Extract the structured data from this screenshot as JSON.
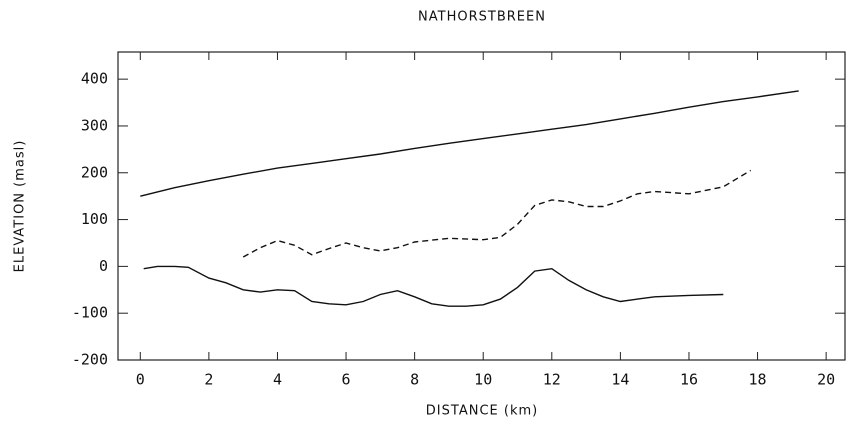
{
  "chart_data": {
    "type": "line",
    "title": "NATHORSTBREEN",
    "x_label": "DISTANCE (km)",
    "y_label": "ELEVATION (masl)",
    "xlim": [
      -0.65,
      20.55
    ],
    "ylim": [
      -200,
      458
    ],
    "xticks": [
      0,
      2,
      4,
      6,
      8,
      10,
      12,
      14,
      16,
      18,
      20
    ],
    "yticks": [
      -200,
      -100,
      0,
      100,
      200,
      300,
      400
    ],
    "series": [
      {
        "color": "#111111",
        "dashed": false,
        "x": [
          0,
          1,
          2,
          3,
          4,
          5,
          6,
          7,
          8,
          9,
          10,
          11,
          12,
          13,
          14,
          15,
          16,
          17,
          18,
          19.2
        ],
        "values": [
          150,
          168,
          183,
          197,
          210,
          220,
          230,
          240,
          252,
          263,
          273,
          283,
          293,
          303,
          315,
          327,
          340,
          352,
          362,
          375
        ]
      },
      {
        "color": "#111111",
        "dashed": true,
        "x": [
          3,
          3.5,
          4,
          4.5,
          5,
          5.5,
          6,
          6.5,
          7,
          7.5,
          8,
          9,
          10,
          10.5,
          11,
          11.5,
          12,
          12.5,
          13,
          13.5,
          14,
          14.5,
          15,
          16,
          17,
          17.8
        ],
        "values": [
          20,
          40,
          55,
          45,
          25,
          38,
          50,
          40,
          33,
          40,
          52,
          60,
          57,
          62,
          90,
          130,
          142,
          138,
          128,
          128,
          140,
          155,
          160,
          155,
          170,
          205
        ]
      },
      {
        "color": "#111111",
        "dashed": false,
        "x": [
          0.1,
          0.5,
          1,
          1.4,
          2,
          2.5,
          3,
          3.5,
          4,
          4.5,
          5,
          5.5,
          6,
          6.5,
          7,
          7.5,
          8,
          8.5,
          9,
          9.5,
          10,
          10.5,
          11,
          11.5,
          12,
          12.5,
          13,
          13.5,
          14,
          14.5,
          15,
          16,
          17
        ],
        "values": [
          -5,
          0,
          0,
          -2,
          -25,
          -35,
          -50,
          -55,
          -50,
          -52,
          -75,
          -80,
          -82,
          -75,
          -60,
          -52,
          -65,
          -80,
          -85,
          -85,
          -82,
          -70,
          -45,
          -10,
          -5,
          -30,
          -50,
          -65,
          -75,
          -70,
          -65,
          -62,
          -60
        ]
      }
    ]
  }
}
